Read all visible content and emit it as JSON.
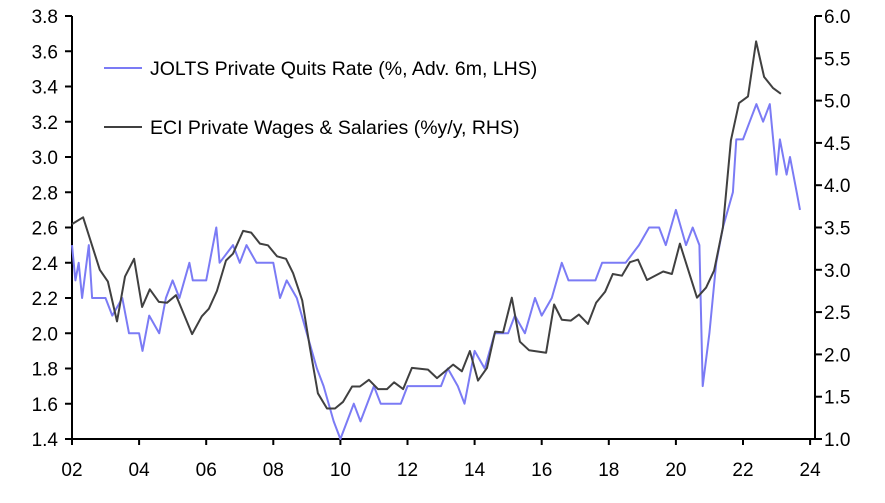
{
  "chart_data": {
    "type": "line",
    "title": "",
    "xlabel": "",
    "ylabel_left": "",
    "ylabel_right": "",
    "x_ticks": [
      "02",
      "04",
      "06",
      "08",
      "10",
      "12",
      "14",
      "16",
      "18",
      "20",
      "22",
      "24"
    ],
    "x_tick_years": [
      2002,
      2004,
      2006,
      2008,
      2010,
      2012,
      2014,
      2016,
      2018,
      2020,
      2022,
      2024
    ],
    "xlim": [
      2002,
      2024.2
    ],
    "ylim_left": [
      1.4,
      3.8
    ],
    "yticks_left": [
      "1.4",
      "1.6",
      "1.8",
      "2.0",
      "2.2",
      "2.4",
      "2.6",
      "2.8",
      "3.0",
      "3.2",
      "3.4",
      "3.6",
      "3.8"
    ],
    "ylim_right": [
      1.0,
      6.0
    ],
    "yticks_right": [
      "1.0",
      "1.5",
      "2.0",
      "2.5",
      "3.0",
      "3.5",
      "4.0",
      "4.5",
      "5.0",
      "5.5",
      "6.0"
    ],
    "grid": false,
    "legend_placement": "top-left",
    "series": [
      {
        "name": "JOLTS Private Quits Rate (%, Adv. 6m, LHS)",
        "axis": "left",
        "color": "#7b7bf5",
        "x": [
          2002.0,
          2002.1,
          2002.2,
          2002.3,
          2002.5,
          2002.6,
          2003.0,
          2003.2,
          2003.5,
          2003.7,
          2004.0,
          2004.1,
          2004.3,
          2004.6,
          2004.8,
          2005.0,
          2005.2,
          2005.5,
          2005.6,
          2006.0,
          2006.3,
          2006.4,
          2006.8,
          2007.0,
          2007.2,
          2007.5,
          2008.0,
          2008.2,
          2008.4,
          2008.7,
          2009.0,
          2009.3,
          2009.5,
          2009.8,
          2010.0,
          2010.2,
          2010.4,
          2010.6,
          2011.0,
          2011.2,
          2011.8,
          2012.0,
          2012.5,
          2013.0,
          2013.2,
          2013.5,
          2013.7,
          2014.0,
          2014.3,
          2014.6,
          2015.0,
          2015.2,
          2015.5,
          2015.8,
          2016.0,
          2016.3,
          2016.6,
          2016.8,
          2017.0,
          2017.6,
          2017.8,
          2018.0,
          2018.5,
          2018.9,
          2019.2,
          2019.5,
          2019.7,
          2020.0,
          2020.3,
          2020.5,
          2020.7,
          2020.8,
          2021.0,
          2021.2,
          2021.4,
          2021.7,
          2021.8,
          2022.0,
          2022.2,
          2022.4,
          2022.6,
          2022.8,
          2023.0,
          2023.1,
          2023.3,
          2023.4,
          2023.6,
          2023.7
        ],
        "values": [
          2.5,
          2.3,
          2.4,
          2.2,
          2.5,
          2.2,
          2.2,
          2.1,
          2.2,
          2.0,
          2.0,
          1.9,
          2.1,
          2.0,
          2.2,
          2.3,
          2.2,
          2.4,
          2.3,
          2.3,
          2.6,
          2.4,
          2.5,
          2.4,
          2.5,
          2.4,
          2.4,
          2.2,
          2.3,
          2.2,
          2.0,
          1.8,
          1.7,
          1.5,
          1.4,
          1.5,
          1.6,
          1.5,
          1.7,
          1.6,
          1.6,
          1.7,
          1.7,
          1.7,
          1.8,
          1.7,
          1.6,
          1.9,
          1.8,
          2.0,
          2.0,
          2.1,
          2.0,
          2.2,
          2.1,
          2.2,
          2.4,
          2.3,
          2.3,
          2.3,
          2.4,
          2.4,
          2.4,
          2.5,
          2.6,
          2.6,
          2.5,
          2.7,
          2.5,
          2.6,
          2.5,
          1.7,
          2.0,
          2.4,
          2.6,
          2.8,
          3.1,
          3.1,
          3.2,
          3.3,
          3.2,
          3.3,
          2.9,
          3.1,
          2.9,
          3.0,
          2.8,
          2.7
        ]
      },
      {
        "name": "ECI Private Wages & Salaries (%y/y, RHS)",
        "axis": "right",
        "color": "#404040",
        "x": [
          2002.0,
          2002.33,
          2002.83,
          2003.07,
          2003.34,
          2003.58,
          2003.85,
          2004.09,
          2004.32,
          2004.59,
          2004.83,
          2005.1,
          2005.58,
          2005.87,
          2006.08,
          2006.32,
          2006.59,
          2006.8,
          2007.1,
          2007.34,
          2007.6,
          2007.84,
          2008.11,
          2008.38,
          2008.59,
          2008.86,
          2009.09,
          2009.33,
          2009.6,
          2009.84,
          2010.08,
          2010.35,
          2010.58,
          2010.85,
          2011.12,
          2011.39,
          2011.6,
          2011.87,
          2012.13,
          2012.61,
          2012.88,
          2013.36,
          2013.62,
          2013.86,
          2014.1,
          2014.37,
          2014.61,
          2014.85,
          2015.11,
          2015.35,
          2015.62,
          2016.13,
          2016.37,
          2016.6,
          2016.87,
          2017.11,
          2017.38,
          2017.62,
          2017.89,
          2018.12,
          2018.39,
          2018.63,
          2018.87,
          2019.14,
          2019.62,
          2019.88,
          2020.12,
          2020.63,
          2020.9,
          2021.14,
          2021.4,
          2021.64,
          2021.88,
          2022.15,
          2022.39,
          2022.63,
          2022.89,
          2023.13
        ],
        "values": [
          3.54,
          3.62,
          3.0,
          2.86,
          2.39,
          2.92,
          3.13,
          2.56,
          2.77,
          2.62,
          2.61,
          2.7,
          2.24,
          2.45,
          2.54,
          2.75,
          3.11,
          3.19,
          3.46,
          3.44,
          3.31,
          3.29,
          3.16,
          3.13,
          2.96,
          2.64,
          2.08,
          1.54,
          1.36,
          1.36,
          1.44,
          1.62,
          1.62,
          1.7,
          1.59,
          1.59,
          1.67,
          1.59,
          1.84,
          1.82,
          1.72,
          1.88,
          1.8,
          2.04,
          1.69,
          1.84,
          2.27,
          2.26,
          2.67,
          2.15,
          2.05,
          2.02,
          2.59,
          2.41,
          2.4,
          2.47,
          2.36,
          2.61,
          2.74,
          2.95,
          2.93,
          3.09,
          3.12,
          2.88,
          2.98,
          2.95,
          3.31,
          2.67,
          2.79,
          2.99,
          3.5,
          4.53,
          4.97,
          5.05,
          5.7,
          5.28,
          5.15,
          5.08
        ]
      }
    ]
  }
}
